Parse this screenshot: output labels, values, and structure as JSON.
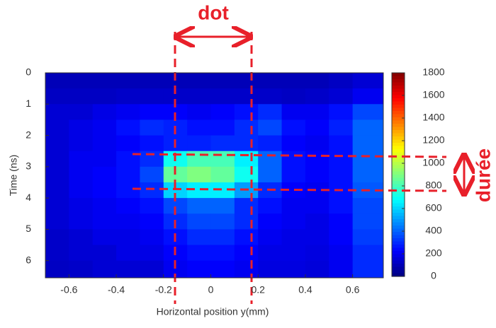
{
  "chart_data": {
    "type": "heatmap",
    "xlabel": "Horizontal position y(mm)",
    "ylabel": "Time (ns)",
    "xlim": [
      -0.7,
      0.73
    ],
    "ylim": [
      0,
      6.55
    ],
    "xticks": [
      -0.6,
      -0.4,
      -0.2,
      0,
      0.2,
      0.4,
      0.6
    ],
    "yticks": [
      0,
      1,
      2,
      3,
      4,
      5,
      6
    ],
    "xbins": [
      -0.7,
      -0.6,
      -0.5,
      -0.4,
      -0.3,
      -0.2,
      -0.1,
      0,
      0.1,
      0.2,
      0.3,
      0.4,
      0.5,
      0.6,
      0.73
    ],
    "ybins": [
      0,
      0.5,
      1,
      1.5,
      2,
      2.5,
      3,
      3.5,
      4,
      4.5,
      5,
      5.5,
      6,
      6.55
    ],
    "values": [
      [
        100,
        100,
        100,
        100,
        100,
        100,
        100,
        100,
        100,
        100,
        100,
        100,
        120,
        150
      ],
      [
        120,
        120,
        120,
        130,
        130,
        130,
        130,
        130,
        130,
        130,
        120,
        130,
        150,
        200
      ],
      [
        150,
        150,
        180,
        200,
        220,
        220,
        200,
        220,
        250,
        300,
        200,
        200,
        250,
        350
      ],
      [
        150,
        180,
        200,
        250,
        300,
        280,
        250,
        250,
        300,
        350,
        250,
        220,
        280,
        400
      ],
      [
        150,
        180,
        200,
        220,
        250,
        280,
        280,
        300,
        300,
        280,
        220,
        200,
        250,
        400
      ],
      [
        150,
        200,
        200,
        250,
        300,
        700,
        800,
        800,
        650,
        400,
        250,
        220,
        250,
        400
      ],
      [
        150,
        200,
        220,
        250,
        350,
        850,
        900,
        850,
        700,
        400,
        250,
        220,
        250,
        400
      ],
      [
        150,
        200,
        220,
        250,
        300,
        600,
        650,
        650,
        500,
        300,
        220,
        200,
        250,
        380
      ],
      [
        150,
        180,
        200,
        220,
        250,
        350,
        400,
        400,
        300,
        250,
        200,
        200,
        250,
        350
      ],
      [
        150,
        180,
        200,
        200,
        220,
        300,
        350,
        350,
        300,
        220,
        200,
        180,
        220,
        350
      ],
      [
        130,
        150,
        180,
        180,
        200,
        250,
        300,
        300,
        250,
        200,
        180,
        180,
        220,
        330
      ],
      [
        130,
        150,
        150,
        180,
        180,
        220,
        250,
        250,
        220,
        180,
        180,
        170,
        200,
        300
      ],
      [
        120,
        130,
        150,
        150,
        150,
        200,
        220,
        220,
        200,
        170,
        170,
        160,
        200,
        300
      ]
    ],
    "colormap": "jet",
    "colorbar": {
      "lim": [
        0,
        1800
      ],
      "ticks": [
        0,
        200,
        400,
        600,
        800,
        1000,
        1200,
        1400,
        1600,
        1800
      ]
    },
    "annotations": {
      "dot": "dot",
      "duree": "durée"
    }
  }
}
